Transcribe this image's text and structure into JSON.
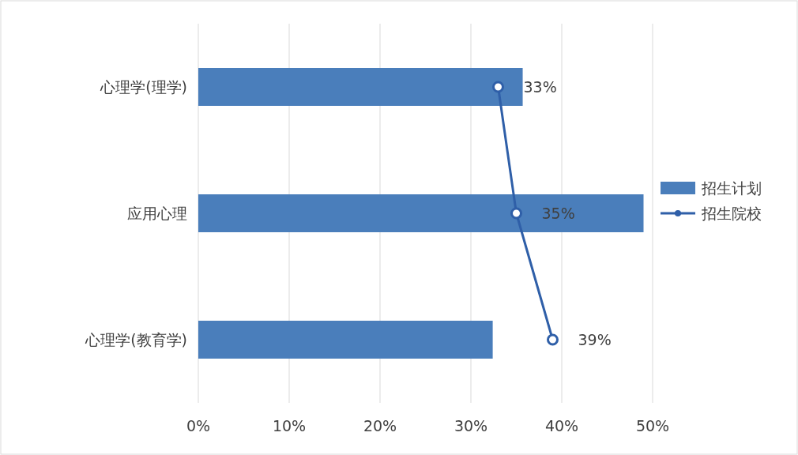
{
  "chart_data": {
    "type": "bar",
    "orientation": "horizontal",
    "categories": [
      "心理学(理学)",
      "应用心理",
      "心理学(教育学)"
    ],
    "series": [
      {
        "name": "招生计划",
        "color": "#4a7ebb",
        "values": [
          35.7,
          49,
          32.4
        ]
      },
      {
        "name": "招生院校",
        "type": "line",
        "color": "#2f5fa8",
        "values": [
          33,
          35,
          39
        ],
        "value_labels": [
          "33%",
          "35%",
          "39%"
        ],
        "marker": "circle",
        "line_style": "solid"
      }
    ],
    "xlim": [
      0,
      50
    ],
    "xticks": [
      {
        "value": 0,
        "label": "0%"
      },
      {
        "value": 10,
        "label": "10%"
      },
      {
        "value": 20,
        "label": "20%"
      },
      {
        "value": 30,
        "label": "30%"
      },
      {
        "value": 40,
        "label": "40%"
      },
      {
        "value": 50,
        "label": "50%"
      }
    ],
    "grid": "x",
    "legend": "right"
  }
}
